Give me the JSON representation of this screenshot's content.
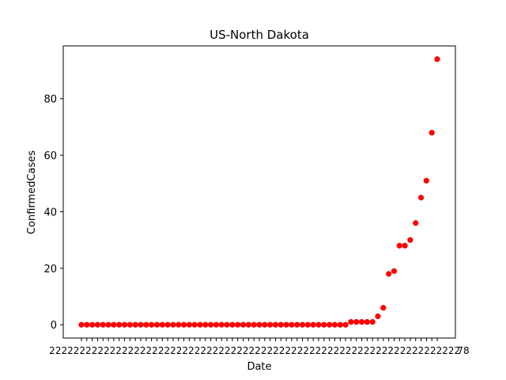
{
  "chart_data": {
    "type": "scatter",
    "title": "US-North Dakota",
    "xlabel": "Date",
    "ylabel": "ConfirmedCases",
    "color": "#ff0000",
    "x_tick_labels": [
      "2",
      "2",
      "2",
      "2",
      "2",
      "2",
      "2",
      "2",
      "2",
      "2",
      "2",
      "2",
      "2",
      "2",
      "2",
      "2",
      "2",
      "2",
      "2",
      "2",
      "2",
      "2",
      "2",
      "2",
      "2",
      "2",
      "2",
      "2",
      "2",
      "2",
      "2",
      "2",
      "2",
      "2",
      "2",
      "2",
      "2",
      "2",
      "2",
      "2",
      "2",
      "2",
      "2",
      "2",
      "2",
      "2",
      "2",
      "2",
      "2",
      "2",
      "2",
      "2",
      "2",
      "2",
      "2",
      "2",
      "2",
      "2",
      "2",
      "2",
      "2",
      "2",
      "2",
      "2",
      "2",
      "2",
      "2",
      "2",
      "78"
    ],
    "values": [
      0,
      0,
      0,
      0,
      0,
      0,
      0,
      0,
      0,
      0,
      0,
      0,
      0,
      0,
      0,
      0,
      0,
      0,
      0,
      0,
      0,
      0,
      0,
      0,
      0,
      0,
      0,
      0,
      0,
      0,
      0,
      0,
      0,
      0,
      0,
      0,
      0,
      0,
      0,
      0,
      0,
      0,
      0,
      0,
      0,
      0,
      0,
      0,
      0,
      0,
      1,
      1,
      1,
      1,
      1,
      3,
      6,
      18,
      19,
      28,
      28,
      30,
      36,
      45,
      51,
      68,
      94
    ],
    "ylim": [
      -4.7,
      98.7
    ],
    "yticks": [
      0,
      20,
      40,
      60,
      80
    ],
    "grid": false,
    "legend": "none"
  }
}
